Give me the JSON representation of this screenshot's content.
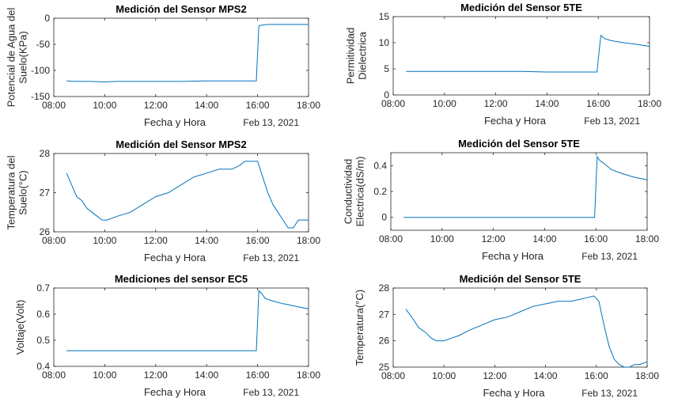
{
  "chart_data": [
    {
      "type": "line",
      "title": "Medición del Sensor MPS2",
      "xlabel": "Fecha y Hora",
      "date_label": "Feb 13, 2021",
      "ylabel": [
        "Potencial de Agua del",
        "Suelo(KPa)"
      ],
      "x_ticks": [
        "08:00",
        "10:00",
        "12:00",
        "14:00",
        "16:00",
        "18:00"
      ],
      "y_ticks": [
        "0",
        "-50",
        "-100",
        "-150"
      ],
      "xlim": [
        8,
        18
      ],
      "ylim": [
        -150,
        0
      ],
      "series": [
        {
          "color": "#0072BD",
          "x": [
            8.5,
            8.8,
            9.4,
            10.0,
            10.5,
            11.0,
            12.0,
            13.0,
            14.0,
            15.0,
            15.95,
            16.05,
            16.1,
            16.2,
            16.4,
            16.8,
            17.2,
            18.0
          ],
          "y": [
            -120,
            -121,
            -121,
            -122,
            -121,
            -121,
            -121,
            -121,
            -120,
            -120,
            -120,
            -15,
            -14,
            -13,
            -12,
            -12,
            -12,
            -12
          ]
        }
      ]
    },
    {
      "type": "line",
      "title": "Medición del Sensor 5TE",
      "xlabel": "Fecha y Hora",
      "date_label": "Feb 13, 2021",
      "ylabel": [
        "Permitividad",
        "Dielectrica"
      ],
      "x_ticks": [
        "08:00",
        "10:00",
        "12:00",
        "14:00",
        "16:00",
        "18:00"
      ],
      "y_ticks": [
        "15",
        "10",
        "5",
        "0"
      ],
      "xlim": [
        8,
        18
      ],
      "ylim": [
        0,
        15
      ],
      "series": [
        {
          "color": "#0072BD",
          "x": [
            8.5,
            9.0,
            10.0,
            11.0,
            12.0,
            13.0,
            14.0,
            15.0,
            15.95,
            16.1,
            16.25,
            16.5,
            17.0,
            17.5,
            18.0
          ],
          "y": [
            4.5,
            4.5,
            4.5,
            4.5,
            4.5,
            4.5,
            4.4,
            4.4,
            4.4,
            11.4,
            10.8,
            10.4,
            10.0,
            9.7,
            9.3
          ]
        }
      ]
    },
    {
      "type": "line",
      "title": "Medición del Sensor MPS2",
      "xlabel": "Fecha y Hora",
      "date_label": "Feb 13, 2021",
      "ylabel": [
        "Temperatura del",
        "Suelo(°C)"
      ],
      "x_ticks": [
        "08:00",
        "10:00",
        "12:00",
        "14:00",
        "16:00",
        "18:00"
      ],
      "y_ticks": [
        "28",
        "27",
        "26"
      ],
      "xlim": [
        8,
        18
      ],
      "ylim": [
        26,
        28
      ],
      "series": [
        {
          "color": "#0072BD",
          "x": [
            8.5,
            8.7,
            8.9,
            9.1,
            9.3,
            9.5,
            9.7,
            9.9,
            10.1,
            10.5,
            11.0,
            11.5,
            12.0,
            12.5,
            13.0,
            13.5,
            14.0,
            14.5,
            15.0,
            15.3,
            15.5,
            16.0,
            16.2,
            16.4,
            16.6,
            16.8,
            17.0,
            17.2,
            17.4,
            17.6,
            18.0
          ],
          "y": [
            27.5,
            27.2,
            26.9,
            26.8,
            26.6,
            26.5,
            26.4,
            26.3,
            26.3,
            26.4,
            26.5,
            26.7,
            26.9,
            27.0,
            27.2,
            27.4,
            27.5,
            27.6,
            27.6,
            27.7,
            27.8,
            27.8,
            27.4,
            27.0,
            26.7,
            26.5,
            26.3,
            26.1,
            26.1,
            26.3,
            26.3
          ]
        }
      ]
    },
    {
      "type": "line",
      "title": "Medición del Sensor 5TE",
      "xlabel": "Fecha y Hora",
      "date_label": "Feb 13, 2021",
      "ylabel": [
        "Conductividad",
        "Electrica(dS/m)"
      ],
      "x_ticks": [
        "08:00",
        "10:00",
        "12:00",
        "14:00",
        "16:00",
        "18:00"
      ],
      "y_ticks": [
        "0.4",
        "0.2",
        "0"
      ],
      "xlim": [
        8,
        18
      ],
      "ylim": [
        -0.1,
        0.5
      ],
      "series": [
        {
          "color": "#0072BD",
          "x": [
            8.5,
            9.0,
            10.0,
            11.0,
            12.0,
            13.0,
            14.0,
            15.0,
            15.95,
            16.05,
            16.15,
            16.3,
            16.6,
            17.0,
            17.5,
            18.0
          ],
          "y": [
            0,
            0,
            0,
            0,
            0,
            0,
            0,
            0,
            0,
            0.47,
            0.44,
            0.42,
            0.37,
            0.34,
            0.31,
            0.29
          ]
        }
      ]
    },
    {
      "type": "line",
      "title": "Mediciones del sensor EC5",
      "xlabel": "Fecha y Hora",
      "date_label": "Feb 13, 2021",
      "ylabel": [
        "Voltaje(Volt)"
      ],
      "x_ticks": [
        "08:00",
        "10:00",
        "12:00",
        "14:00",
        "16:00",
        "18:00"
      ],
      "y_ticks": [
        "0.7",
        "0.6",
        "0.5",
        "0.4"
      ],
      "xlim": [
        8,
        18
      ],
      "ylim": [
        0.4,
        0.7
      ],
      "series": [
        {
          "color": "#0072BD",
          "x": [
            8.5,
            9.0,
            9.5,
            10.0,
            10.5,
            11.0,
            12.0,
            13.0,
            14.0,
            15.0,
            15.95,
            16.05,
            16.15,
            16.3,
            16.6,
            17.0,
            17.5,
            18.0
          ],
          "y": [
            0.46,
            0.46,
            0.46,
            0.46,
            0.46,
            0.46,
            0.46,
            0.46,
            0.46,
            0.46,
            0.46,
            0.69,
            0.68,
            0.66,
            0.65,
            0.64,
            0.63,
            0.62
          ]
        }
      ]
    },
    {
      "type": "line",
      "title": "Medición del Sensor 5TE",
      "xlabel": "Fecha y Hora",
      "date_label": "Feb 13, 2021",
      "ylabel": [
        "Temperatura(°C)"
      ],
      "x_ticks": [
        "08:00",
        "10:00",
        "12:00",
        "14:00",
        "16:00",
        "18:00"
      ],
      "y_ticks": [
        "28",
        "27",
        "26",
        "25"
      ],
      "xlim": [
        8,
        18
      ],
      "ylim": [
        25,
        28
      ],
      "series": [
        {
          "color": "#0072BD",
          "x": [
            8.5,
            8.8,
            9.0,
            9.3,
            9.5,
            9.7,
            10.0,
            10.3,
            10.6,
            11.0,
            11.5,
            12.0,
            12.5,
            13.0,
            13.5,
            14.0,
            14.5,
            15.0,
            15.5,
            15.9,
            16.1,
            16.3,
            16.5,
            16.7,
            16.9,
            17.1,
            17.3,
            17.5,
            17.7,
            18.0
          ],
          "y": [
            27.2,
            26.8,
            26.5,
            26.3,
            26.1,
            26.0,
            26.0,
            26.1,
            26.2,
            26.4,
            26.6,
            26.8,
            26.9,
            27.1,
            27.3,
            27.4,
            27.5,
            27.5,
            27.6,
            27.7,
            27.5,
            26.6,
            25.8,
            25.3,
            25.1,
            25.0,
            25.0,
            25.1,
            25.1,
            25.2
          ]
        }
      ]
    }
  ]
}
